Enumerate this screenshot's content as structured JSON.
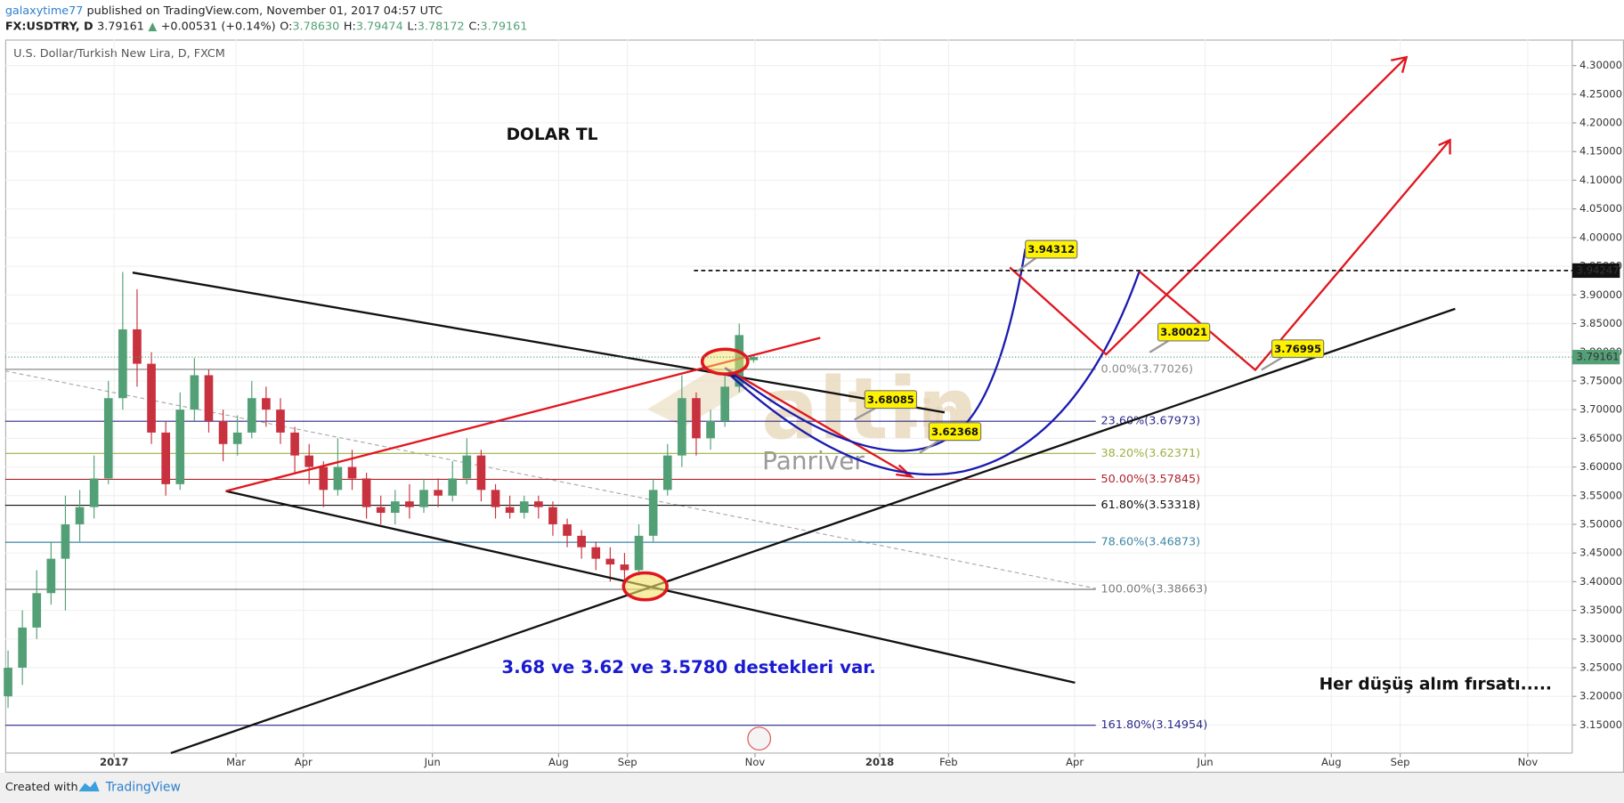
{
  "header": {
    "author": "galaxytime77",
    "published": "published on TradingView.com, November 01, 2017 04:57 UTC",
    "symbol": "FX:USDTRY, D",
    "last": "3.79161",
    "arrow": "▲",
    "change": "+0.00531 (+0.14%)",
    "ohlc": [
      {
        "label": "O:",
        "value": "3.78630"
      },
      {
        "label": "H:",
        "value": "3.79474"
      },
      {
        "label": "L:",
        "value": "3.78172"
      },
      {
        "label": "C:",
        "value": "3.79161"
      }
    ]
  },
  "chart_data": {
    "type": "candlestick",
    "title": "U.S. Dollar/Turkish New Lira, D, FXCM",
    "up_color": "#53a077",
    "down_color": "#c8323f",
    "grid": true,
    "open": [
      3.2,
      3.25,
      3.32,
      3.38,
      3.44,
      3.5,
      3.53,
      3.58,
      3.72,
      3.84,
      3.78,
      3.66,
      3.57,
      3.7,
      3.76,
      3.68,
      3.64,
      3.66,
      3.72,
      3.7,
      3.66,
      3.62,
      3.6,
      3.56,
      3.6,
      3.58,
      3.53,
      3.52,
      3.54,
      3.53,
      3.56,
      3.55,
      3.58,
      3.62,
      3.56,
      3.53,
      3.52,
      3.54,
      3.53,
      3.5,
      3.48,
      3.46,
      3.44,
      3.43,
      3.42,
      3.48,
      3.56,
      3.62,
      3.72,
      3.65,
      3.68,
      3.74,
      3.7863
    ],
    "high": [
      3.28,
      3.35,
      3.42,
      3.47,
      3.55,
      3.56,
      3.62,
      3.75,
      3.94,
      3.91,
      3.8,
      3.68,
      3.73,
      3.79,
      3.77,
      3.7,
      3.69,
      3.75,
      3.74,
      3.72,
      3.67,
      3.64,
      3.61,
      3.65,
      3.63,
      3.59,
      3.55,
      3.56,
      3.57,
      3.58,
      3.58,
      3.61,
      3.65,
      3.63,
      3.57,
      3.55,
      3.55,
      3.55,
      3.54,
      3.51,
      3.49,
      3.47,
      3.46,
      3.45,
      3.5,
      3.58,
      3.64,
      3.76,
      3.73,
      3.7,
      3.76,
      3.85,
      3.79474
    ],
    "low": [
      3.18,
      3.22,
      3.3,
      3.36,
      3.35,
      3.47,
      3.51,
      3.57,
      3.7,
      3.74,
      3.64,
      3.55,
      3.56,
      3.68,
      3.66,
      3.61,
      3.62,
      3.65,
      3.67,
      3.64,
      3.59,
      3.57,
      3.53,
      3.55,
      3.56,
      3.51,
      3.5,
      3.5,
      3.51,
      3.52,
      3.53,
      3.54,
      3.57,
      3.54,
      3.51,
      3.51,
      3.51,
      3.51,
      3.48,
      3.46,
      3.44,
      3.42,
      3.4,
      3.4,
      3.41,
      3.47,
      3.55,
      3.6,
      3.62,
      3.63,
      3.67,
      3.73,
      3.78172
    ],
    "close": [
      3.25,
      3.32,
      3.38,
      3.44,
      3.5,
      3.53,
      3.58,
      3.72,
      3.84,
      3.78,
      3.66,
      3.57,
      3.7,
      3.76,
      3.68,
      3.64,
      3.66,
      3.72,
      3.7,
      3.66,
      3.62,
      3.6,
      3.56,
      3.6,
      3.58,
      3.53,
      3.52,
      3.54,
      3.53,
      3.56,
      3.55,
      3.58,
      3.62,
      3.56,
      3.53,
      3.52,
      3.54,
      3.53,
      3.5,
      3.48,
      3.46,
      3.44,
      3.43,
      3.42,
      3.48,
      3.56,
      3.62,
      3.72,
      3.65,
      3.68,
      3.74,
      3.83,
      3.79161
    ],
    "xlim": [
      -0.2,
      109.1
    ],
    "xticks": [
      {
        "value": 7.4,
        "label": "2017"
      },
      {
        "value": 15.9,
        "label": "Mar"
      },
      {
        "value": 20.6,
        "label": "Apr"
      },
      {
        "value": 29.6,
        "label": "Jun"
      },
      {
        "value": 38.4,
        "label": "Aug"
      },
      {
        "value": 43.2,
        "label": "Sep"
      },
      {
        "value": 52.1,
        "label": "Nov"
      },
      {
        "value": 60.8,
        "label": "2018"
      },
      {
        "value": 65.6,
        "label": "Feb"
      },
      {
        "value": 74.4,
        "label": "Apr"
      },
      {
        "value": 83.5,
        "label": "Jun"
      },
      {
        "value": 92.3,
        "label": "Aug"
      },
      {
        "value": 97.1,
        "label": "Sep"
      },
      {
        "value": 106,
        "label": "Nov"
      }
    ],
    "ylim": [
      3.1011,
      4.3453
    ],
    "yticks": [
      {
        "value": 3.15,
        "label": "3.15000"
      },
      {
        "value": 3.2,
        "label": "3.20000"
      },
      {
        "value": 3.25,
        "label": "3.25000"
      },
      {
        "value": 3.3,
        "label": "3.30000"
      },
      {
        "value": 3.35,
        "label": "3.35000"
      },
      {
        "value": 3.4,
        "label": "3.40000"
      },
      {
        "value": 3.45,
        "label": "3.45000"
      },
      {
        "value": 3.5,
        "label": "3.50000"
      },
      {
        "value": 3.55,
        "label": "3.55000"
      },
      {
        "value": 3.6,
        "label": "3.60000"
      },
      {
        "value": 3.65,
        "label": "3.65000"
      },
      {
        "value": 3.7,
        "label": "3.70000"
      },
      {
        "value": 3.75,
        "label": "3.75000"
      },
      {
        "value": 3.8,
        "label": "3.80000"
      },
      {
        "value": 3.85,
        "label": "3.85000"
      },
      {
        "value": 3.9,
        "label": "3.90000"
      },
      {
        "value": 3.95,
        "label": "3.95000"
      },
      {
        "value": 4.0,
        "label": "4.00000"
      },
      {
        "value": 4.05,
        "label": "4.05000"
      },
      {
        "value": 4.1,
        "label": "4.10000"
      },
      {
        "value": 4.15,
        "label": "4.15000"
      },
      {
        "value": 4.2,
        "label": "4.20000"
      },
      {
        "value": 4.25,
        "label": "4.25000"
      },
      {
        "value": 4.3,
        "label": "4.30000"
      }
    ],
    "fib_levels": [
      {
        "value": 3.77026,
        "label": "0.00%(3.77026)",
        "color": "#8a8a8a"
      },
      {
        "value": 3.67973,
        "label": "23.60%(3.67973)",
        "color": "#2a2a8a"
      },
      {
        "value": 3.62371,
        "label": "38.20%(3.62371)",
        "color": "#9bb043"
      },
      {
        "value": 3.57845,
        "label": "50.00%(3.57845)",
        "color": "#b0242c"
      },
      {
        "value": 3.53318,
        "label": "61.80%(3.53318)",
        "color": "#111111"
      },
      {
        "value": 3.46873,
        "label": "78.60%(3.46873)",
        "color": "#3f87a6"
      },
      {
        "value": 3.38663,
        "label": "100.00%(3.38663)",
        "color": "#7a7a7a"
      },
      {
        "value": 3.14954,
        "label": "161.80%(3.14954)",
        "color": "#2a2a8a"
      }
    ],
    "resistance": 3.94247,
    "last_price": 3.79161,
    "callouts": [
      3.94312,
      3.80021,
      3.76995,
      3.68085,
      3.62368
    ],
    "annotations": {
      "name": "DOLAR TL",
      "supports": "3.68 ve 3.62 ve 3.5780 destekleri var.",
      "advice": "Her düşüş alım fırsatı.....",
      "watermark": "altin",
      "watermark_tld": ".in",
      "watermark_sub": "Panriver"
    }
  },
  "footer": {
    "created": "Created with",
    "brand": "TradingView"
  }
}
